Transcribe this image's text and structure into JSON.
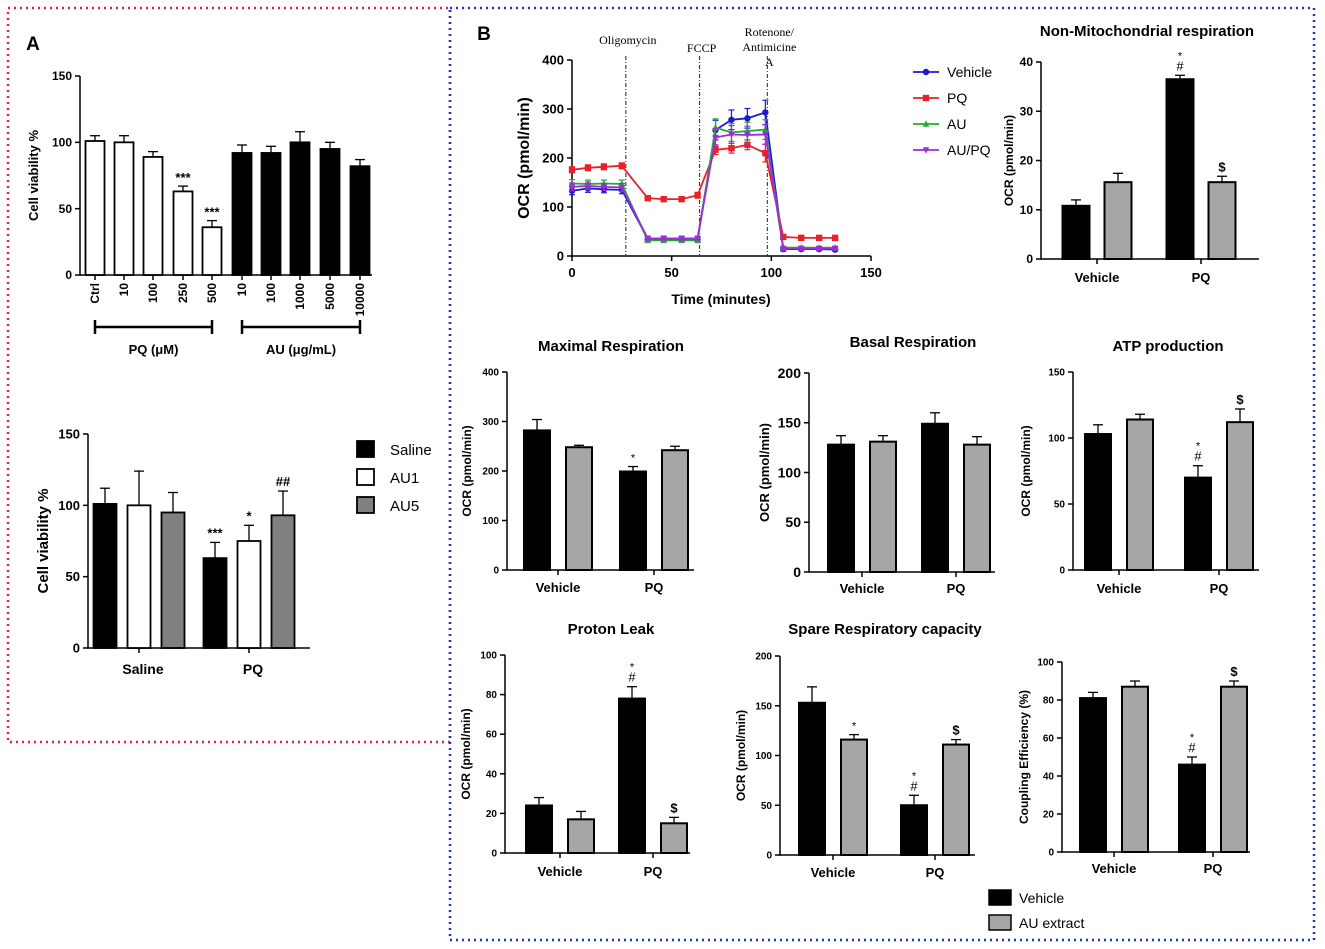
{
  "colors": {
    "panel_a_border": "#e8232b",
    "panel_b_border": "#2233c8",
    "vehicle": "#000000",
    "au_extract": "#a6a6a6",
    "open_bar": "#ffffff"
  },
  "panel_a": {
    "label": "A",
    "viability_chart": {
      "type": "bar",
      "ylabel": "Cell viability %",
      "yticks": [
        0,
        50,
        100,
        150
      ],
      "ylim": [
        0,
        150
      ],
      "categories": [
        "Ctrl",
        "10",
        "100",
        "250",
        "500",
        "10",
        "100",
        "1000",
        "5000",
        "10000"
      ],
      "values": [
        101,
        100,
        89,
        63,
        36,
        92,
        92,
        100,
        95,
        82
      ],
      "errors": [
        4,
        5,
        4,
        4,
        5,
        6,
        5,
        8,
        5,
        5
      ],
      "fills": [
        "open",
        "open",
        "open",
        "open",
        "open",
        "solid",
        "solid",
        "solid",
        "solid",
        "solid"
      ],
      "annotations": [
        {
          "index": 3,
          "text": "***"
        },
        {
          "index": 4,
          "text": "***"
        }
      ],
      "groups": [
        {
          "label": "PQ (μM)",
          "from": 0,
          "to": 4
        },
        {
          "label": "AU (μg/mL)",
          "from": 5,
          "to": 9
        }
      ]
    },
    "group_chart": {
      "type": "bar",
      "ylabel": "Cell viability %",
      "yticks": [
        0,
        50,
        100,
        150
      ],
      "ylim": [
        0,
        150
      ],
      "categories": [
        "Saline",
        "PQ"
      ],
      "series": [
        {
          "name": "Saline",
          "fill": "solid",
          "values": [
            101,
            63
          ],
          "errors": [
            11,
            11
          ],
          "annotations": [
            "",
            "***"
          ]
        },
        {
          "name": "AU1",
          "fill": "open",
          "values": [
            100,
            75
          ],
          "errors": [
            24,
            11
          ],
          "annotations": [
            "",
            "*"
          ]
        },
        {
          "name": "AU5",
          "fill": "grey",
          "values": [
            95,
            93
          ],
          "errors": [
            14,
            17
          ],
          "annotations": [
            "",
            "##"
          ]
        }
      ]
    }
  },
  "panel_b": {
    "label": "B",
    "ocr_timecourse": {
      "type": "line",
      "xlabel": "Time (minutes)",
      "ylabel": "OCR (pmol/min)",
      "xlim": [
        0,
        150
      ],
      "ylim": [
        0,
        400
      ],
      "xticks": [
        0,
        50,
        100,
        150
      ],
      "yticks": [
        0,
        100,
        200,
        300,
        400
      ],
      "x": [
        0,
        8,
        16,
        25,
        38,
        46,
        55,
        63,
        72,
        80,
        88,
        97,
        106,
        115,
        124,
        132
      ],
      "injections": [
        {
          "x": 27,
          "label": "Oligomycin"
        },
        {
          "x": 64,
          "label": "FCCP"
        },
        {
          "x": 98,
          "label": "Rotenone/ Antimicine A"
        }
      ],
      "series": [
        {
          "name": "Vehicle",
          "color": "#1a1ad6",
          "marker": "circle",
          "values": [
            133,
            138,
            136,
            135,
            35,
            35,
            35,
            35,
            257,
            278,
            281,
            293,
            14,
            14,
            14,
            13
          ],
          "errors": [
            8,
            8,
            7,
            8,
            5,
            5,
            5,
            5,
            20,
            20,
            20,
            25,
            4,
            3,
            3,
            3
          ]
        },
        {
          "name": "PQ",
          "color": "#e8202a",
          "marker": "square",
          "values": [
            176,
            180,
            182,
            184,
            118,
            116,
            116,
            124,
            217,
            220,
            227,
            210,
            39,
            37,
            37,
            37
          ],
          "errors": [
            6,
            6,
            6,
            6,
            4,
            4,
            4,
            6,
            10,
            10,
            10,
            18,
            3,
            3,
            3,
            3
          ]
        },
        {
          "name": "AU",
          "color": "#1fae2b",
          "marker": "triangle-up",
          "values": [
            148,
            147,
            148,
            147,
            32,
            32,
            32,
            32,
            262,
            252,
            255,
            258,
            17,
            17,
            17,
            17
          ],
          "errors": [
            8,
            8,
            7,
            8,
            4,
            4,
            4,
            4,
            18,
            18,
            18,
            20,
            3,
            3,
            3,
            3
          ]
        },
        {
          "name": "AU/PQ",
          "color": "#9b2fd3",
          "marker": "triangle-down",
          "values": [
            141,
            143,
            141,
            140,
            36,
            36,
            36,
            36,
            242,
            248,
            247,
            248,
            15,
            15,
            15,
            15
          ],
          "errors": [
            8,
            8,
            7,
            8,
            4,
            4,
            4,
            4,
            18,
            18,
            18,
            20,
            3,
            3,
            3,
            3
          ]
        }
      ]
    },
    "bar_panels": [
      {
        "id": "non-mitochondrial",
        "title": "Non-Mitochondrial respiration",
        "ylabel": "OCR (pmol/min)",
        "ylim": [
          0,
          40
        ],
        "yticks": [
          0,
          10,
          20,
          30,
          40
        ],
        "categories": [
          "Vehicle",
          "PQ"
        ],
        "series": [
          {
            "name": "Vehicle",
            "values": [
              10.8,
              36.5
            ],
            "errors": [
              1.2,
              0.8
            ],
            "annotations": [
              [],
              [
                "*",
                "#"
              ]
            ]
          },
          {
            "name": "AU extract",
            "values": [
              15.6,
              15.6
            ],
            "errors": [
              1.8,
              1.2
            ],
            "annotations": [
              [],
              [
                "$"
              ]
            ]
          }
        ]
      },
      {
        "id": "maximal",
        "title": "Maximal Respiration",
        "ylabel": "OCR (pmol/min)",
        "ylim": [
          0,
          400
        ],
        "yticks": [
          0,
          100,
          200,
          300,
          400
        ],
        "categories": [
          "Vehicle",
          "PQ"
        ],
        "series": [
          {
            "name": "Vehicle",
            "values": [
              282,
              199
            ],
            "errors": [
              22,
              10
            ],
            "annotations": [
              [],
              [
                "*"
              ]
            ]
          },
          {
            "name": "AU extract",
            "values": [
              248,
              242
            ],
            "errors": [
              4,
              8
            ],
            "annotations": [
              [],
              []
            ]
          }
        ]
      },
      {
        "id": "basal",
        "title": "Basal Respiration",
        "ylabel": "OCR (pmol/min)",
        "ylim": [
          0,
          200
        ],
        "yticks": [
          0,
          50,
          100,
          150,
          200
        ],
        "categories": [
          "Vehicle",
          "PQ"
        ],
        "series": [
          {
            "name": "Vehicle",
            "values": [
              128,
              149
            ],
            "errors": [
              9,
              11
            ],
            "annotations": [
              [],
              []
            ]
          },
          {
            "name": "AU extract",
            "values": [
              131,
              128
            ],
            "errors": [
              6,
              8
            ],
            "annotations": [
              [],
              []
            ]
          }
        ]
      },
      {
        "id": "atp",
        "title": "ATP production",
        "ylabel": "OCR (pmol/min)",
        "ylim": [
          0,
          150
        ],
        "yticks": [
          0,
          50,
          100,
          150
        ],
        "categories": [
          "Vehicle",
          "PQ"
        ],
        "series": [
          {
            "name": "Vehicle",
            "values": [
              103,
              70
            ],
            "errors": [
              7,
              9
            ],
            "annotations": [
              [],
              [
                "*",
                "#"
              ]
            ]
          },
          {
            "name": "AU extract",
            "values": [
              114,
              112
            ],
            "errors": [
              4,
              10
            ],
            "annotations": [
              [],
              [
                "$"
              ]
            ]
          }
        ]
      },
      {
        "id": "proton-leak",
        "title": "Proton Leak",
        "ylabel": "OCR (pmol/min)",
        "ylim": [
          0,
          100
        ],
        "yticks": [
          0,
          20,
          40,
          60,
          80,
          100
        ],
        "categories": [
          "Vehicle",
          "PQ"
        ],
        "series": [
          {
            "name": "Vehicle",
            "values": [
              24,
              78
            ],
            "errors": [
              4,
              6
            ],
            "annotations": [
              [],
              [
                "*",
                "#"
              ]
            ]
          },
          {
            "name": "AU extract",
            "values": [
              17,
              15
            ],
            "errors": [
              4,
              3
            ],
            "annotations": [
              [],
              [
                "$"
              ]
            ]
          }
        ]
      },
      {
        "id": "spare",
        "title": "Spare Respiratory capacity",
        "ylabel": "OCR (pmol/min)",
        "ylim": [
          0,
          200
        ],
        "yticks": [
          0,
          50,
          100,
          150,
          200
        ],
        "categories": [
          "Vehicle",
          "PQ"
        ],
        "series": [
          {
            "name": "Vehicle",
            "values": [
              153,
              50
            ],
            "errors": [
              16,
              10
            ],
            "annotations": [
              [],
              [
                "*",
                "#"
              ]
            ]
          },
          {
            "name": "AU extract",
            "values": [
              116,
              111
            ],
            "errors": [
              5,
              5
            ],
            "annotations": [
              [
                "*"
              ],
              [
                "$"
              ]
            ]
          }
        ]
      },
      {
        "id": "coupling",
        "title": "",
        "ylabel": "Coupling Efficiency (%)",
        "ylim": [
          0,
          100
        ],
        "yticks": [
          0,
          20,
          40,
          60,
          80,
          100
        ],
        "categories": [
          "Vehicle",
          "PQ"
        ],
        "series": [
          {
            "name": "Vehicle",
            "values": [
              81,
              46
            ],
            "errors": [
              3,
              4
            ],
            "annotations": [
              [],
              [
                "*",
                "#"
              ]
            ]
          },
          {
            "name": "AU extract",
            "values": [
              87,
              87
            ],
            "errors": [
              3,
              3
            ],
            "annotations": [
              [],
              [
                "$"
              ]
            ]
          }
        ]
      }
    ],
    "legend": [
      {
        "name": "Vehicle",
        "color": "#000000"
      },
      {
        "name": "AU extract",
        "color": "#a6a6a6"
      }
    ]
  }
}
